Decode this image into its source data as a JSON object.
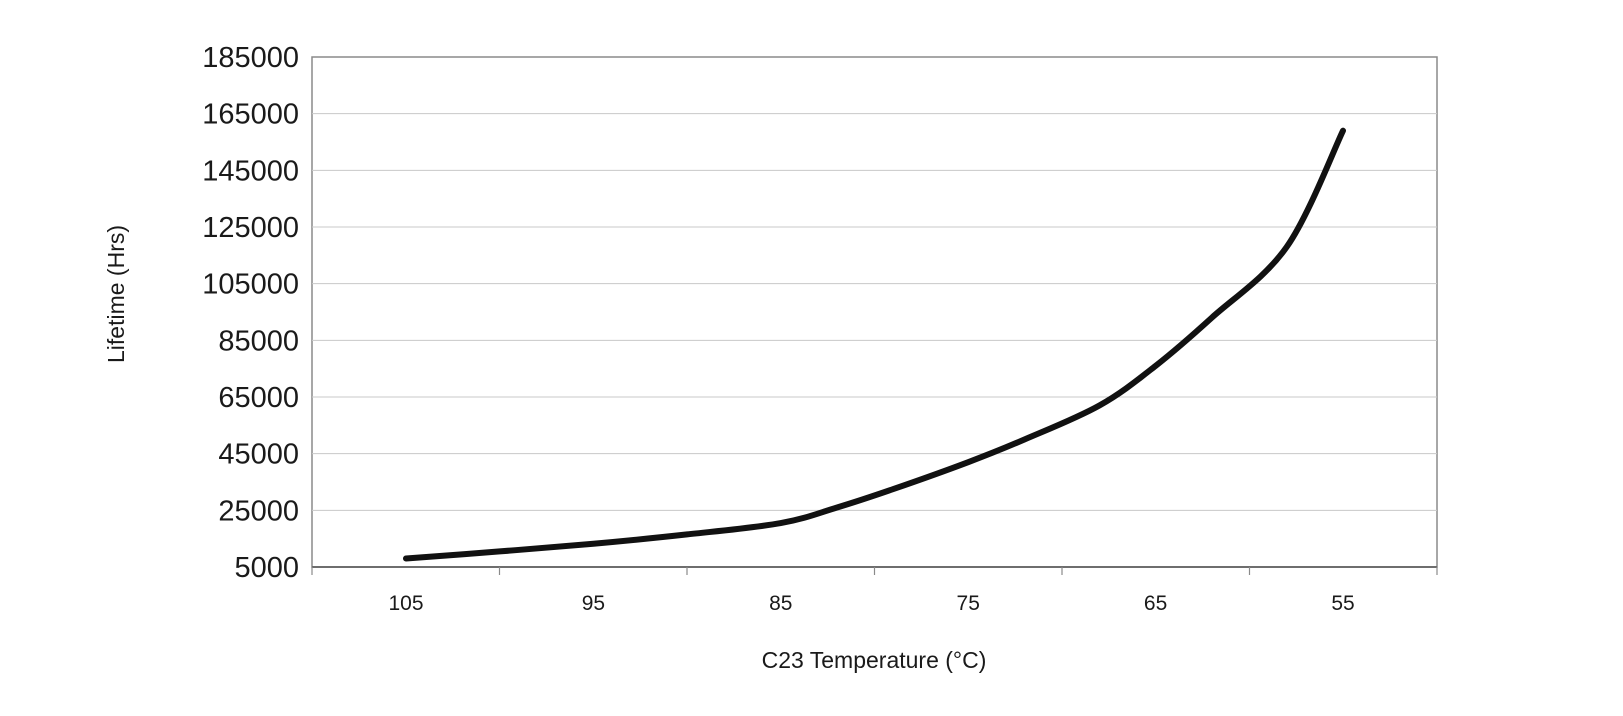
{
  "chart_data": {
    "type": "line",
    "title": "",
    "xlabel": "C23 Temperature (°C)",
    "ylabel": "Lifetime (Hrs)",
    "x_tick_labels": [
      "105",
      "95",
      "85",
      "75",
      "65",
      "55"
    ],
    "y_tick_labels": [
      "185000",
      "165000",
      "145000",
      "125000",
      "105000",
      "85000",
      "65000",
      "45000",
      "25000",
      "5000"
    ],
    "ylim": [
      5000,
      185000
    ],
    "grid": true,
    "legend": "none",
    "series": [
      {
        "name": "Lifetime",
        "color": "#111111",
        "points": [
          {
            "x": 105,
            "y": 8000
          },
          {
            "x": 100,
            "y": 10500
          },
          {
            "x": 95,
            "y": 13200
          },
          {
            "x": 90,
            "y": 16500
          },
          {
            "x": 85,
            "y": 20500
          },
          {
            "x": 82,
            "y": 26000
          },
          {
            "x": 79,
            "y": 32500
          },
          {
            "x": 75,
            "y": 42000
          },
          {
            "x": 72,
            "y": 50000
          },
          {
            "x": 68,
            "y": 62000
          },
          {
            "x": 65,
            "y": 76000
          },
          {
            "x": 62,
            "y": 93000
          },
          {
            "x": 58,
            "y": 118000
          },
          {
            "x": 55,
            "y": 159000
          }
        ]
      }
    ]
  }
}
